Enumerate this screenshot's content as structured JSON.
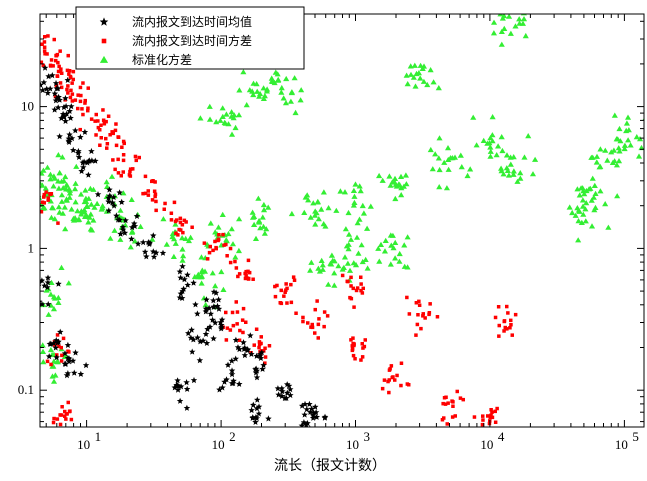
{
  "chart_data": {
    "type": "scatter",
    "title": "",
    "xlabel": "流长（报文计数）",
    "ylabel": "",
    "x_scale": "log",
    "y_scale": "log",
    "xlim": [
      4.5,
      140000
    ],
    "ylim": [
      0.055,
      45
    ],
    "x_ticks": [
      {
        "value": 10,
        "base": "10",
        "exp": "1"
      },
      {
        "value": 100,
        "base": "10",
        "exp": "2"
      },
      {
        "value": 1000,
        "base": "10",
        "exp": "3"
      },
      {
        "value": 10000,
        "base": "10",
        "exp": "4"
      },
      {
        "value": 100000,
        "base": "10",
        "exp": "5"
      }
    ],
    "y_ticks": [
      {
        "value": 0.1,
        "label": "0.1"
      },
      {
        "value": 1,
        "label": "1"
      },
      {
        "value": 10,
        "label": "10"
      }
    ],
    "grid": false,
    "legend_position": "top-center",
    "series": [
      {
        "name": "流内报文到达时间均值",
        "marker": "star",
        "color": "#000000",
        "sample_points": [
          [
            5,
            16
          ],
          [
            6,
            12
          ],
          [
            7,
            9
          ],
          [
            8,
            6
          ],
          [
            10,
            4
          ],
          [
            15,
            2.2
          ],
          [
            20,
            1.5
          ],
          [
            30,
            1.0
          ],
          [
            50,
            0.6
          ],
          [
            80,
            0.4
          ],
          [
            100,
            0.3
          ],
          [
            150,
            0.2
          ],
          [
            200,
            0.15
          ],
          [
            300,
            0.1
          ],
          [
            500,
            0.07
          ],
          [
            5,
            0.5
          ],
          [
            6,
            0.2
          ],
          [
            8,
            0.15
          ],
          [
            50,
            0.1
          ],
          [
            70,
            0.25
          ],
          [
            120,
            0.12
          ],
          [
            200,
            0.07
          ],
          [
            400,
            0.06
          ]
        ]
      },
      {
        "name": "流内报文到达时间方差",
        "marker": "square",
        "color": "#ff0000",
        "sample_points": [
          [
            5,
            25
          ],
          [
            6,
            20
          ],
          [
            7,
            15
          ],
          [
            9,
            12
          ],
          [
            12,
            8
          ],
          [
            15,
            6
          ],
          [
            20,
            4
          ],
          [
            30,
            2.5
          ],
          [
            50,
            1.5
          ],
          [
            100,
            1.0
          ],
          [
            150,
            0.7
          ],
          [
            300,
            0.5
          ],
          [
            500,
            0.3
          ],
          [
            1000,
            0.2
          ],
          [
            2000,
            0.12
          ],
          [
            5000,
            0.08
          ],
          [
            10000,
            0.06
          ],
          [
            1000,
            0.5
          ],
          [
            3000,
            0.35
          ],
          [
            13000,
            0.3
          ],
          [
            5,
            2
          ],
          [
            6,
            0.2
          ],
          [
            7,
            0.07
          ],
          [
            120,
            0.3
          ],
          [
            200,
            0.2
          ]
        ]
      },
      {
        "name": "标准化方差",
        "marker": "triangle",
        "color": "#33ee33",
        "sample_points": [
          [
            5,
            3
          ],
          [
            6,
            2
          ],
          [
            7,
            3
          ],
          [
            8,
            2
          ],
          [
            10,
            1.8
          ],
          [
            15,
            2
          ],
          [
            20,
            1.5
          ],
          [
            50,
            1.2
          ],
          [
            100,
            1.2
          ],
          [
            200,
            1.5
          ],
          [
            500,
            1.8
          ],
          [
            1000,
            2
          ],
          [
            2000,
            3
          ],
          [
            5000,
            4
          ],
          [
            10000,
            5
          ],
          [
            15000,
            4
          ],
          [
            50000,
            2
          ],
          [
            60000,
            2.2
          ],
          [
            120000,
            6
          ],
          [
            80000,
            4.5
          ],
          [
            14000,
            40
          ],
          [
            3000,
            15
          ],
          [
            100,
            8
          ],
          [
            200,
            13
          ],
          [
            300,
            12
          ],
          [
            1000,
            0.9
          ],
          [
            2000,
            1.0
          ],
          [
            5,
            0.5
          ],
          [
            6,
            0.15
          ],
          [
            80,
            0.6
          ],
          [
            600,
            0.75
          ]
        ]
      }
    ]
  }
}
